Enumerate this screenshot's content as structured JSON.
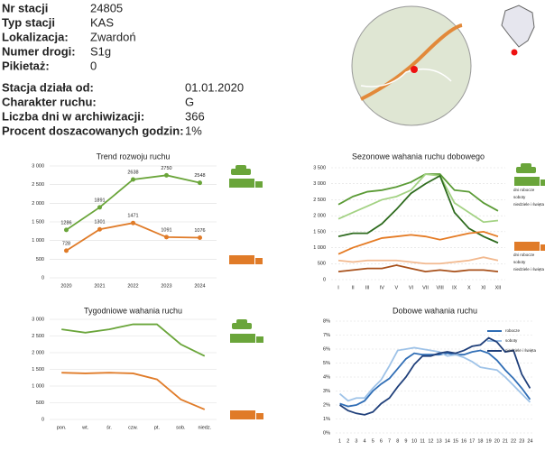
{
  "info": {
    "rows": [
      [
        "Nr stacji",
        "24805"
      ],
      [
        "Typ stacji",
        "KAS"
      ],
      [
        "Lokalizacja:",
        "Zwardoń"
      ],
      [
        "Numer drogi:",
        "S1g"
      ],
      [
        "Pikietaż:",
        "0"
      ]
    ],
    "rows2": [
      [
        "Stacja działa od:",
        "01.01.2020"
      ],
      [
        "Charakter ruchu:",
        "G"
      ],
      [
        "Liczba dni w archiwizacji:",
        "366"
      ],
      [
        "Procent doszacowanych godzin:",
        "1%"
      ]
    ]
  },
  "chart_data": [
    {
      "type": "line",
      "title": "Trend rozwoju ruchu",
      "categories": [
        "2020",
        "2021",
        "2022",
        "2023",
        "2024"
      ],
      "series": [
        {
          "color": "#6aa53a",
          "values": [
            1286,
            1891,
            2638,
            2750,
            2548
          ]
        },
        {
          "color": "#e07b28",
          "values": [
            728,
            1301,
            1471,
            1091,
            1076
          ]
        }
      ],
      "ylim": [
        0,
        3000
      ],
      "yticks": [
        0,
        500,
        {
          "value": 1000,
          "label": "1 000"
        },
        {
          "value": 1500,
          "label": "1 500"
        },
        {
          "value": 2000,
          "label": "2 000"
        },
        {
          "value": 2500,
          "label": "2 500"
        },
        {
          "value": 3000,
          "label": "3 000"
        }
      ],
      "grid": true,
      "data_labels": true,
      "markers": true
    },
    {
      "type": "line",
      "title": "Sezonowe wahania ruchu dobowego",
      "categories": [
        "I",
        "II",
        "III",
        "IV",
        "V",
        "VI",
        "VII",
        "VIII",
        "IX",
        "X",
        "XI",
        "XII"
      ],
      "series": [
        {
          "name": "dni robocze",
          "color": "#5b9b36",
          "values": [
            2350,
            2600,
            2750,
            2800,
            2900,
            3050,
            3300,
            3300,
            2800,
            2750,
            2400,
            2150
          ]
        },
        {
          "name": "soboty",
          "color": "#a3d283",
          "values": [
            1900,
            2100,
            2300,
            2500,
            2600,
            2800,
            3300,
            3250,
            2400,
            2100,
            1800,
            1850
          ]
        },
        {
          "name": "niedziele i święta",
          "color": "#2e6b1e",
          "values": [
            1350,
            1450,
            1450,
            1750,
            2200,
            2700,
            3000,
            3250,
            2100,
            1600,
            1350,
            1150
          ]
        },
        {
          "name": "dni robocze",
          "color": "#e57b24",
          "values": [
            800,
            1000,
            1150,
            1300,
            1350,
            1400,
            1350,
            1250,
            1350,
            1450,
            1500,
            1350
          ]
        },
        {
          "name": "soboty",
          "color": "#f2b98f",
          "values": [
            600,
            550,
            600,
            600,
            600,
            550,
            500,
            500,
            550,
            600,
            700,
            600
          ]
        },
        {
          "name": "niedziele i święta",
          "color": "#a8501a",
          "values": [
            250,
            300,
            350,
            350,
            450,
            350,
            250,
            300,
            250,
            300,
            300,
            250
          ]
        }
      ],
      "ylim": [
        0,
        3500
      ],
      "yticks": [
        0,
        500,
        {
          "value": 1000,
          "label": "1 000"
        },
        {
          "value": 1500,
          "label": "1 500"
        },
        {
          "value": 2000,
          "label": "2 000"
        },
        {
          "value": 2500,
          "label": "2 500"
        },
        {
          "value": 3000,
          "label": "3 000"
        },
        {
          "value": 3500,
          "label": "3 500"
        }
      ],
      "grid": true,
      "legend": "right"
    },
    {
      "type": "line",
      "title": "Tygodniowe wahania ruchu",
      "categories": [
        "pon.",
        "wt.",
        "śr.",
        "czw.",
        "pt.",
        "sob.",
        "niedz."
      ],
      "series": [
        {
          "color": "#6aa53a",
          "values": [
            2700,
            2600,
            2700,
            2850,
            2850,
            2250,
            1900
          ]
        },
        {
          "color": "#e07b28",
          "values": [
            1400,
            1380,
            1400,
            1380,
            1200,
            600,
            300
          ]
        }
      ],
      "ylim": [
        0,
        3000
      ],
      "yticks": [
        0,
        500,
        {
          "value": 1000,
          "label": "1 000"
        },
        {
          "value": 1500,
          "label": "1 500"
        },
        {
          "value": 2000,
          "label": "2 000"
        },
        {
          "value": 2500,
          "label": "2 500"
        },
        {
          "value": 3000,
          "label": "3 000"
        }
      ],
      "grid": true
    },
    {
      "type": "line",
      "title": "Dobowe wahania ruchu",
      "categories": [
        "1",
        "2",
        "3",
        "4",
        "5",
        "6",
        "7",
        "8",
        "9",
        "10",
        "11",
        "12",
        "13",
        "14",
        "15",
        "16",
        "17",
        "18",
        "19",
        "20",
        "21",
        "22",
        "23",
        "24"
      ],
      "series": [
        {
          "name": "robocze",
          "color": "#2f6db5",
          "values": [
            2.1,
            1.9,
            2.0,
            2.3,
            3.0,
            3.5,
            3.9,
            4.6,
            5.3,
            5.7,
            5.6,
            5.6,
            5.6,
            5.7,
            5.6,
            5.6,
            5.8,
            5.9,
            5.7,
            5.2,
            4.5,
            3.9,
            3.2,
            2.4
          ]
        },
        {
          "name": "soboty",
          "color": "#9fc3e8",
          "values": [
            2.8,
            2.3,
            2.5,
            2.5,
            3.2,
            3.8,
            4.8,
            5.9,
            6.0,
            6.1,
            6.0,
            5.9,
            5.8,
            5.5,
            5.6,
            5.4,
            5.1,
            4.7,
            4.6,
            4.5,
            4.0,
            3.4,
            2.8,
            2.2
          ]
        },
        {
          "name": "niedziele i święta",
          "color": "#1f3f7a",
          "values": [
            2.0,
            1.6,
            1.4,
            1.3,
            1.5,
            2.1,
            2.5,
            3.3,
            4.0,
            4.9,
            5.5,
            5.5,
            5.7,
            5.8,
            5.7,
            5.9,
            6.2,
            6.3,
            6.8,
            6.5,
            5.8,
            5.9,
            4.2,
            3.2
          ]
        }
      ],
      "ylim": [
        0,
        8
      ],
      "yticks": [
        {
          "value": 0,
          "label": "0%"
        },
        {
          "value": 1,
          "label": "1%"
        },
        {
          "value": 2,
          "label": "2%"
        },
        {
          "value": 3,
          "label": "3%"
        },
        {
          "value": 4,
          "label": "4%"
        },
        {
          "value": 5,
          "label": "5%"
        },
        {
          "value": 6,
          "label": "6%"
        },
        {
          "value": 7,
          "label": "7%"
        },
        {
          "value": 8,
          "label": "8%"
        }
      ],
      "grid": true,
      "legend": "top-right"
    }
  ]
}
